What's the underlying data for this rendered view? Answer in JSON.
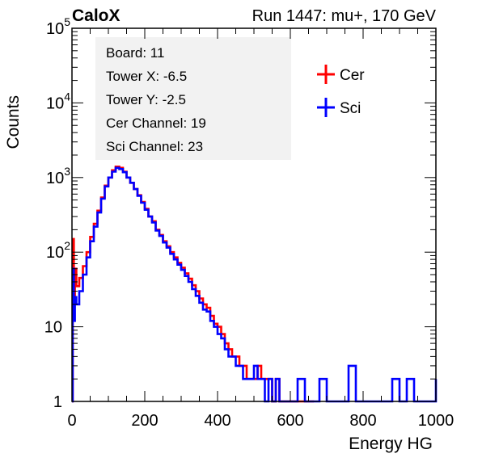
{
  "header": {
    "left": "CaloX",
    "right": "Run 1447: mu+, 170 GeV"
  },
  "info_box": [
    "Board: 11",
    "Tower X: -6.5",
    "Tower Y: -2.5",
    "Cer Channel: 19",
    "Sci Channel: 23"
  ],
  "colors": {
    "cer": "#ff0000",
    "sci": "#0000ff"
  },
  "chart_data": {
    "type": "line",
    "title": "",
    "xlabel": "Energy HG",
    "ylabel": "Counts",
    "xlim": [
      0,
      1000
    ],
    "ylim": [
      1,
      100000
    ],
    "yscale": "log",
    "grid": false,
    "legend_position": "top-right",
    "x_ticks": [
      0,
      200,
      400,
      600,
      800,
      1000
    ],
    "y_ticks": [
      {
        "value": 1,
        "base": "1",
        "exp": ""
      },
      {
        "value": 10,
        "base": "10",
        "exp": ""
      },
      {
        "value": 100,
        "base": "10",
        "exp": "2"
      },
      {
        "value": 1000,
        "base": "10",
        "exp": "3"
      },
      {
        "value": 10000,
        "base": "10",
        "exp": "4"
      },
      {
        "value": 100000,
        "base": "10",
        "exp": "5"
      }
    ],
    "series": [
      {
        "name": "Cer",
        "color": "#ff0000",
        "x": [
          0,
          2,
          5,
          8,
          12,
          20,
          30,
          40,
          50,
          60,
          70,
          80,
          90,
          100,
          110,
          120,
          130,
          140,
          150,
          160,
          170,
          180,
          190,
          200,
          210,
          220,
          230,
          240,
          250,
          260,
          270,
          280,
          290,
          300,
          310,
          320,
          330,
          340,
          350,
          360,
          370,
          380,
          390,
          400,
          410,
          420,
          430,
          440,
          450,
          460,
          470,
          480,
          490,
          500,
          510,
          520,
          530,
          540,
          550,
          560,
          570,
          580,
          600,
          620,
          640,
          660
        ],
        "y": [
          1,
          150,
          20,
          60,
          35,
          45,
          65,
          100,
          160,
          240,
          360,
          540,
          780,
          1000,
          1250,
          1400,
          1350,
          1200,
          1000,
          850,
          700,
          580,
          470,
          380,
          300,
          260,
          200,
          170,
          140,
          120,
          100,
          85,
          72,
          62,
          52,
          44,
          36,
          30,
          24,
          20,
          18,
          14,
          11,
          10,
          8,
          6,
          5,
          4,
          4,
          3,
          3,
          2,
          2,
          2,
          3,
          2,
          2,
          2,
          1,
          2,
          1,
          1,
          1,
          1,
          1,
          1
        ]
      },
      {
        "name": "Sci",
        "color": "#0000ff",
        "x": [
          0,
          2,
          5,
          8,
          12,
          20,
          30,
          40,
          50,
          60,
          70,
          80,
          90,
          100,
          110,
          120,
          130,
          140,
          150,
          160,
          170,
          180,
          190,
          200,
          210,
          220,
          230,
          240,
          250,
          260,
          270,
          280,
          290,
          300,
          310,
          320,
          330,
          340,
          350,
          360,
          370,
          380,
          390,
          400,
          410,
          420,
          430,
          440,
          450,
          460,
          470,
          480,
          490,
          500,
          510,
          520,
          530,
          540,
          550,
          560,
          570,
          580,
          600,
          620,
          640,
          660,
          680,
          700,
          720,
          740,
          760,
          780,
          800,
          820,
          840,
          860,
          880,
          900,
          920,
          940,
          960,
          980,
          1000
        ],
        "y": [
          1,
          60,
          12,
          25,
          20,
          30,
          50,
          85,
          140,
          220,
          340,
          520,
          760,
          1000,
          1200,
          1350,
          1300,
          1180,
          1000,
          850,
          700,
          570,
          460,
          370,
          300,
          250,
          195,
          165,
          135,
          115,
          95,
          80,
          68,
          58,
          48,
          40,
          32,
          26,
          21,
          17,
          16,
          12,
          10,
          8,
          7,
          5,
          4,
          4,
          3,
          3,
          2,
          2,
          2,
          3,
          2,
          2,
          1,
          2,
          1,
          2,
          1,
          1,
          1,
          2,
          1,
          1,
          2,
          1,
          1,
          1,
          3,
          1,
          1,
          1,
          1,
          1,
          2,
          1,
          2,
          1,
          1,
          1,
          2
        ]
      }
    ]
  }
}
